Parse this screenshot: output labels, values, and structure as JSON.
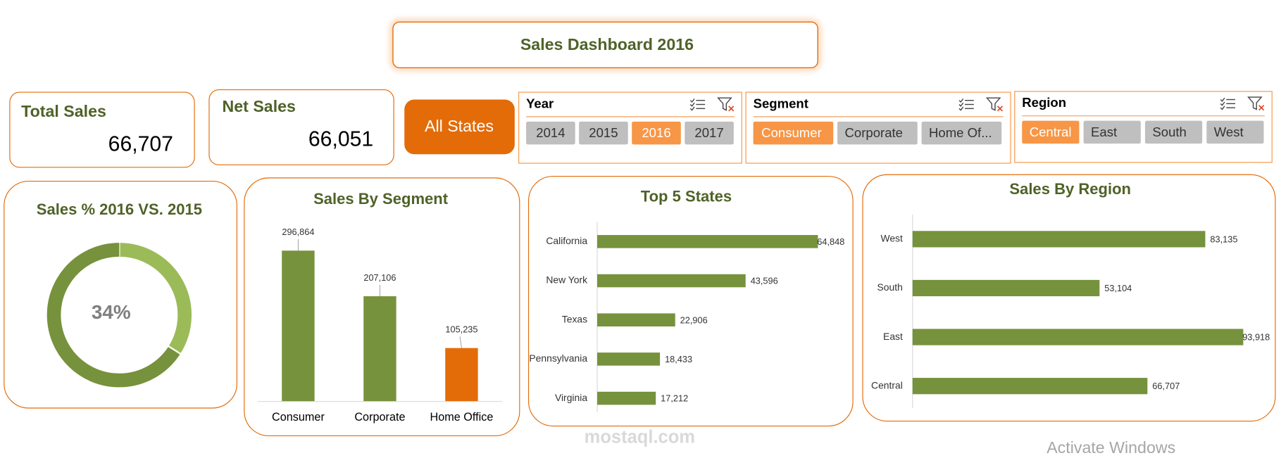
{
  "header": {
    "title": "Sales Dashboard 2016"
  },
  "kpis": [
    {
      "label": "Total Sales",
      "value": "66,707"
    },
    {
      "label": "Net Sales",
      "value": "66,051"
    }
  ],
  "button": {
    "label": "All States"
  },
  "slicers": [
    {
      "title": "Year",
      "items": [
        "2014",
        "2015",
        "2016",
        "2017"
      ],
      "selected": 2
    },
    {
      "title": "Segment",
      "items": [
        "Consumer",
        "Corporate",
        "Home Of..."
      ],
      "selected": 0
    },
    {
      "title": "Region",
      "items": [
        "Central",
        "East",
        "South",
        "West"
      ],
      "selected": 0
    }
  ],
  "chart_data": [
    {
      "type": "donut",
      "title": "Sales % 2016 VS. 2015",
      "values": [
        34,
        66
      ],
      "value_labels": [
        "34%",
        null
      ],
      "colors": [
        "#9bbb59",
        "#76923c"
      ]
    },
    {
      "type": "bar",
      "title": "Sales By Segment",
      "categories": [
        "Consumer",
        "Corporate",
        "Home Office"
      ],
      "values": [
        296864,
        207106,
        105235
      ],
      "value_labels": [
        "296,864",
        "207,106",
        "105,235"
      ],
      "colors": [
        "#76923c",
        "#76923c",
        "#e36c09"
      ],
      "ylim": [
        0,
        350000
      ]
    },
    {
      "type": "barh",
      "title": "Top 5 States",
      "categories": [
        "California",
        "New York",
        "Texas",
        "Pennsylvania",
        "Virginia"
      ],
      "values": [
        64848,
        43596,
        22906,
        18433,
        17212
      ],
      "value_labels": [
        "64,848",
        "43,596",
        "22,906",
        "18,433",
        "17,212"
      ],
      "color": "#76923c",
      "xlim": [
        0,
        72000
      ]
    },
    {
      "type": "barh",
      "title": "Sales By Region",
      "categories": [
        "West",
        "South",
        "East",
        "Central"
      ],
      "values": [
        83135,
        53104,
        93918,
        66707
      ],
      "value_labels": [
        "83,135",
        "53,104",
        "93,918",
        "66,707"
      ],
      "color": "#76923c",
      "xlim": [
        0,
        100000
      ]
    }
  ],
  "watermarks": [
    "mostaql.com",
    "Activate Windows"
  ]
}
